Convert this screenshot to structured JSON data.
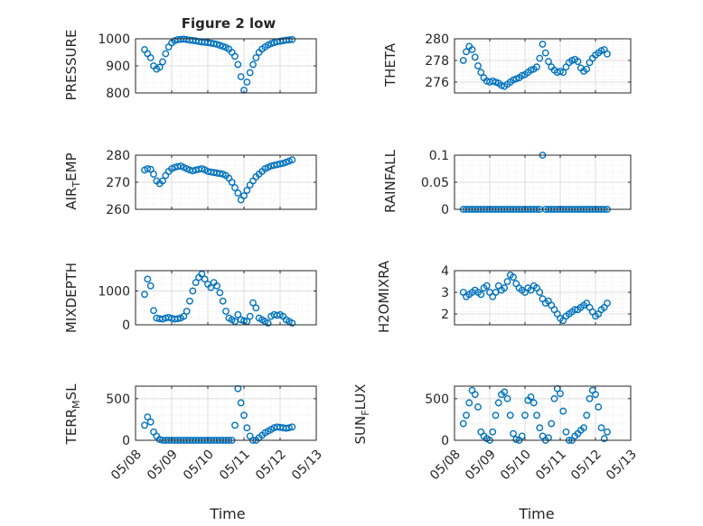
{
  "figure": {
    "title": "Figure 2 low"
  },
  "chart_data": [
    {
      "type": "scatter",
      "ylabel": "PRESSURE",
      "ylim": [
        800,
        1000
      ],
      "yticks": [
        800,
        900,
        1000
      ],
      "xlim": [
        "05/08",
        "05/13"
      ],
      "grid": "on",
      "minor_grid": "on",
      "marker": "circle",
      "color": "#0072BD",
      "x": [
        "05/08 06:00",
        "05/08 08:00",
        "05/08 10:00",
        "05/08 12:00",
        "05/08 14:00",
        "05/08 16:00",
        "05/08 18:00",
        "05/08 20:00",
        "05/08 22:00",
        "05/09 00:00",
        "05/09 02:00",
        "05/09 04:00",
        "05/09 06:00",
        "05/09 08:00",
        "05/09 10:00",
        "05/09 12:00",
        "05/09 14:00",
        "05/09 16:00",
        "05/09 18:00",
        "05/09 20:00",
        "05/09 22:00",
        "05/10 00:00",
        "05/10 02:00",
        "05/10 04:00",
        "05/10 06:00",
        "05/10 08:00",
        "05/10 10:00",
        "05/10 12:00",
        "05/10 14:00",
        "05/10 16:00",
        "05/10 18:00",
        "05/10 20:00",
        "05/10 22:00",
        "05/11 00:00",
        "05/11 02:00",
        "05/11 04:00",
        "05/11 06:00",
        "05/11 08:00",
        "05/11 10:00",
        "05/11 12:00",
        "05/11 14:00",
        "05/11 16:00",
        "05/11 18:00",
        "05/11 20:00",
        "05/11 22:00",
        "05/12 00:00",
        "05/12 02:00",
        "05/12 04:00",
        "05/12 06:00",
        "05/12 08:00"
      ],
      "y": [
        960,
        945,
        930,
        900,
        888,
        895,
        915,
        945,
        970,
        985,
        993,
        997,
        998,
        999,
        997,
        995,
        994,
        992,
        990,
        988,
        987,
        986,
        984,
        982,
        980,
        976,
        972,
        968,
        962,
        950,
        935,
        905,
        860,
        810,
        840,
        875,
        905,
        930,
        950,
        962,
        970,
        977,
        982,
        986,
        989,
        991,
        993,
        995,
        996,
        997
      ]
    },
    {
      "type": "scatter",
      "ylabel": "THETA",
      "ylim": [
        275,
        280
      ],
      "yticks": [
        276,
        278,
        280
      ],
      "xlim": [
        "05/08",
        "05/13"
      ],
      "grid": "on",
      "minor_grid": "on",
      "marker": "circle",
      "color": "#0072BD",
      "x": [
        "05/08 06:00",
        "05/08 08:00",
        "05/08 10:00",
        "05/08 12:00",
        "05/08 14:00",
        "05/08 16:00",
        "05/08 18:00",
        "05/08 20:00",
        "05/08 22:00",
        "05/09 00:00",
        "05/09 02:00",
        "05/09 04:00",
        "05/09 06:00",
        "05/09 08:00",
        "05/09 10:00",
        "05/09 12:00",
        "05/09 14:00",
        "05/09 16:00",
        "05/09 18:00",
        "05/09 20:00",
        "05/09 22:00",
        "05/10 00:00",
        "05/10 02:00",
        "05/10 04:00",
        "05/10 06:00",
        "05/10 08:00",
        "05/10 10:00",
        "05/10 12:00",
        "05/10 14:00",
        "05/10 16:00",
        "05/10 18:00",
        "05/10 20:00",
        "05/10 22:00",
        "05/11 00:00",
        "05/11 02:00",
        "05/11 04:00",
        "05/11 06:00",
        "05/11 08:00",
        "05/11 10:00",
        "05/11 12:00",
        "05/11 14:00",
        "05/11 16:00",
        "05/11 18:00",
        "05/11 20:00",
        "05/11 22:00",
        "05/12 00:00",
        "05/12 02:00",
        "05/12 04:00",
        "05/12 06:00",
        "05/12 08:00"
      ],
      "y": [
        278.0,
        278.8,
        279.3,
        279.0,
        278.3,
        277.5,
        276.9,
        276.4,
        276.1,
        276.0,
        276.1,
        276.0,
        275.9,
        275.7,
        275.6,
        275.8,
        276.0,
        276.2,
        276.3,
        276.4,
        276.6,
        276.7,
        276.9,
        277.1,
        277.2,
        277.4,
        278.2,
        279.5,
        278.7,
        277.9,
        277.4,
        277.1,
        276.9,
        277.0,
        276.9,
        277.4,
        277.8,
        278.0,
        278.1,
        277.9,
        277.3,
        277.0,
        277.2,
        277.8,
        278.2,
        278.5,
        278.7,
        278.9,
        279.0,
        278.6
      ]
    },
    {
      "type": "scatter",
      "ylabel": "AIR_TEMP",
      "ylim": [
        260,
        280
      ],
      "yticks": [
        260,
        270,
        280
      ],
      "xlim": [
        "05/08",
        "05/13"
      ],
      "grid": "on",
      "minor_grid": "on",
      "marker": "circle",
      "color": "#0072BD",
      "x": [
        "05/08 06:00",
        "05/08 08:00",
        "05/08 10:00",
        "05/08 12:00",
        "05/08 14:00",
        "05/08 16:00",
        "05/08 18:00",
        "05/08 20:00",
        "05/08 22:00",
        "05/09 00:00",
        "05/09 02:00",
        "05/09 04:00",
        "05/09 06:00",
        "05/09 08:00",
        "05/09 10:00",
        "05/09 12:00",
        "05/09 14:00",
        "05/09 16:00",
        "05/09 18:00",
        "05/09 20:00",
        "05/09 22:00",
        "05/10 00:00",
        "05/10 02:00",
        "05/10 04:00",
        "05/10 06:00",
        "05/10 08:00",
        "05/10 10:00",
        "05/10 12:00",
        "05/10 14:00",
        "05/10 16:00",
        "05/10 18:00",
        "05/10 20:00",
        "05/10 22:00",
        "05/11 00:00",
        "05/11 02:00",
        "05/11 04:00",
        "05/11 06:00",
        "05/11 08:00",
        "05/11 10:00",
        "05/11 12:00",
        "05/11 14:00",
        "05/11 16:00",
        "05/11 18:00",
        "05/11 20:00",
        "05/11 22:00",
        "05/12 00:00",
        "05/12 02:00",
        "05/12 04:00",
        "05/12 06:00",
        "05/12 08:00"
      ],
      "y": [
        274.5,
        275.0,
        274.8,
        273.0,
        270.5,
        269.5,
        270.5,
        272.5,
        274.0,
        275.0,
        275.5,
        275.8,
        276.0,
        275.5,
        275.0,
        274.5,
        274.2,
        274.5,
        274.8,
        275.0,
        274.6,
        274.0,
        273.8,
        273.6,
        273.4,
        273.2,
        273.0,
        272.5,
        271.5,
        270.0,
        268.0,
        266.0,
        263.5,
        265.0,
        267.0,
        269.0,
        270.5,
        272.0,
        273.0,
        274.0,
        275.0,
        275.5,
        276.0,
        276.3,
        276.5,
        276.8,
        277.0,
        277.4,
        277.8,
        278.3
      ]
    },
    {
      "type": "scatter",
      "ylabel": "RAINFALL",
      "ylim": [
        0,
        0.1
      ],
      "yticks": [
        0,
        0.05,
        0.1
      ],
      "xlim": [
        "05/08",
        "05/13"
      ],
      "grid": "on",
      "minor_grid": "on",
      "marker": "circle",
      "color": "#0072BD",
      "x": [
        "05/08 06:00",
        "05/08 08:00",
        "05/08 10:00",
        "05/08 12:00",
        "05/08 14:00",
        "05/08 16:00",
        "05/08 18:00",
        "05/08 20:00",
        "05/08 22:00",
        "05/09 00:00",
        "05/09 02:00",
        "05/09 04:00",
        "05/09 06:00",
        "05/09 08:00",
        "05/09 10:00",
        "05/09 12:00",
        "05/09 14:00",
        "05/09 16:00",
        "05/09 18:00",
        "05/09 20:00",
        "05/09 22:00",
        "05/10 00:00",
        "05/10 02:00",
        "05/10 04:00",
        "05/10 06:00",
        "05/10 08:00",
        "05/10 10:00",
        "05/10 12:00",
        "05/10 14:00",
        "05/10 16:00",
        "05/10 18:00",
        "05/10 20:00",
        "05/10 22:00",
        "05/11 00:00",
        "05/11 02:00",
        "05/11 04:00",
        "05/11 06:00",
        "05/11 08:00",
        "05/11 10:00",
        "05/11 12:00",
        "05/11 14:00",
        "05/11 16:00",
        "05/11 18:00",
        "05/11 20:00",
        "05/11 22:00",
        "05/12 00:00",
        "05/12 02:00",
        "05/12 04:00",
        "05/12 06:00",
        "05/12 08:00"
      ],
      "y": [
        0,
        0,
        0,
        0,
        0,
        0,
        0,
        0,
        0,
        0,
        0,
        0,
        0,
        0,
        0,
        0,
        0,
        0,
        0,
        0,
        0,
        0,
        0,
        0,
        0,
        0,
        0,
        0.1,
        0,
        0,
        0,
        0,
        0,
        0,
        0,
        0,
        0,
        0,
        0,
        0,
        0,
        0,
        0,
        0,
        0,
        0,
        0,
        0,
        0,
        0
      ]
    },
    {
      "type": "scatter",
      "ylabel": "MIXDEPTH",
      "ylim": [
        0,
        1600
      ],
      "yticks": [
        0,
        1000
      ],
      "xlim": [
        "05/08",
        "05/13"
      ],
      "grid": "on",
      "minor_grid": "on",
      "marker": "circle",
      "color": "#0072BD",
      "x": [
        "05/08 06:00",
        "05/08 08:00",
        "05/08 10:00",
        "05/08 12:00",
        "05/08 14:00",
        "05/08 16:00",
        "05/08 18:00",
        "05/08 20:00",
        "05/08 22:00",
        "05/09 00:00",
        "05/09 02:00",
        "05/09 04:00",
        "05/09 06:00",
        "05/09 08:00",
        "05/09 10:00",
        "05/09 12:00",
        "05/09 14:00",
        "05/09 16:00",
        "05/09 18:00",
        "05/09 20:00",
        "05/09 22:00",
        "05/10 00:00",
        "05/10 02:00",
        "05/10 04:00",
        "05/10 06:00",
        "05/10 08:00",
        "05/10 10:00",
        "05/10 12:00",
        "05/10 14:00",
        "05/10 16:00",
        "05/10 18:00",
        "05/10 20:00",
        "05/10 22:00",
        "05/11 00:00",
        "05/11 02:00",
        "05/11 04:00",
        "05/11 06:00",
        "05/11 08:00",
        "05/11 10:00",
        "05/11 12:00",
        "05/11 14:00",
        "05/11 16:00",
        "05/11 18:00",
        "05/11 20:00",
        "05/11 22:00",
        "05/12 00:00",
        "05/12 02:00",
        "05/12 04:00",
        "05/12 06:00",
        "05/12 08:00"
      ],
      "y": [
        900,
        1350,
        1150,
        420,
        200,
        180,
        170,
        200,
        220,
        190,
        170,
        180,
        200,
        250,
        400,
        700,
        1000,
        1250,
        1400,
        1500,
        1350,
        1200,
        1100,
        1250,
        1150,
        950,
        700,
        400,
        200,
        150,
        100,
        300,
        150,
        120,
        100,
        250,
        650,
        500,
        200,
        150,
        100,
        50,
        250,
        300,
        280,
        300,
        250,
        150,
        100,
        50
      ]
    },
    {
      "type": "scatter",
      "ylabel": "H2OMIXRA",
      "ylim": [
        1.5,
        4
      ],
      "yticks": [
        2,
        3,
        4
      ],
      "xlim": [
        "05/08",
        "05/13"
      ],
      "grid": "on",
      "minor_grid": "on",
      "marker": "circle",
      "color": "#0072BD",
      "x": [
        "05/08 06:00",
        "05/08 08:00",
        "05/08 10:00",
        "05/08 12:00",
        "05/08 14:00",
        "05/08 16:00",
        "05/08 18:00",
        "05/08 20:00",
        "05/08 22:00",
        "05/09 00:00",
        "05/09 02:00",
        "05/09 04:00",
        "05/09 06:00",
        "05/09 08:00",
        "05/09 10:00",
        "05/09 12:00",
        "05/09 14:00",
        "05/09 16:00",
        "05/09 18:00",
        "05/09 20:00",
        "05/09 22:00",
        "05/10 00:00",
        "05/10 02:00",
        "05/10 04:00",
        "05/10 06:00",
        "05/10 08:00",
        "05/10 10:00",
        "05/10 12:00",
        "05/10 14:00",
        "05/10 16:00",
        "05/10 18:00",
        "05/10 20:00",
        "05/10 22:00",
        "05/11 00:00",
        "05/11 02:00",
        "05/11 04:00",
        "05/11 06:00",
        "05/11 08:00",
        "05/11 10:00",
        "05/11 12:00",
        "05/11 14:00",
        "05/11 16:00",
        "05/11 18:00",
        "05/11 20:00",
        "05/11 22:00",
        "05/12 00:00",
        "05/12 02:00",
        "05/12 04:00",
        "05/12 06:00",
        "05/12 08:00"
      ],
      "y": [
        3.0,
        2.8,
        2.9,
        3.0,
        3.1,
        3.0,
        2.9,
        3.2,
        3.3,
        3.0,
        2.8,
        3.0,
        3.3,
        3.1,
        3.2,
        3.5,
        3.8,
        3.7,
        3.4,
        3.2,
        3.1,
        3.0,
        3.2,
        3.1,
        3.3,
        3.2,
        3.0,
        2.7,
        2.5,
        2.6,
        2.4,
        2.2,
        2.0,
        1.8,
        1.7,
        1.9,
        2.0,
        2.1,
        2.2,
        2.2,
        2.3,
        2.4,
        2.5,
        2.3,
        2.1,
        1.9,
        2.0,
        2.2,
        2.3,
        2.5
      ]
    },
    {
      "type": "scatter",
      "ylabel": "TERR_MSL",
      "ylim": [
        0,
        650
      ],
      "yticks": [
        0,
        500
      ],
      "xlim": [
        "05/08",
        "05/13"
      ],
      "grid": "on",
      "minor_grid": "on",
      "marker": "circle",
      "color": "#0072BD",
      "x": [
        "05/08 06:00",
        "05/08 08:00",
        "05/08 10:00",
        "05/08 12:00",
        "05/08 14:00",
        "05/08 16:00",
        "05/08 18:00",
        "05/08 20:00",
        "05/08 22:00",
        "05/09 00:00",
        "05/09 02:00",
        "05/09 04:00",
        "05/09 06:00",
        "05/09 08:00",
        "05/09 10:00",
        "05/09 12:00",
        "05/09 14:00",
        "05/09 16:00",
        "05/09 18:00",
        "05/09 20:00",
        "05/09 22:00",
        "05/10 00:00",
        "05/10 02:00",
        "05/10 04:00",
        "05/10 06:00",
        "05/10 08:00",
        "05/10 10:00",
        "05/10 12:00",
        "05/10 14:00",
        "05/10 16:00",
        "05/10 18:00",
        "05/10 20:00",
        "05/10 22:00",
        "05/11 00:00",
        "05/11 02:00",
        "05/11 04:00",
        "05/11 06:00",
        "05/11 08:00",
        "05/11 10:00",
        "05/11 12:00",
        "05/11 14:00",
        "05/11 16:00",
        "05/11 18:00",
        "05/11 20:00",
        "05/11 22:00",
        "05/12 00:00",
        "05/12 02:00",
        "05/12 04:00",
        "05/12 06:00",
        "05/12 08:00"
      ],
      "y": [
        180,
        280,
        220,
        100,
        50,
        10,
        0,
        0,
        0,
        0,
        0,
        0,
        0,
        0,
        0,
        0,
        0,
        0,
        0,
        0,
        0,
        0,
        0,
        0,
        0,
        0,
        0,
        0,
        0,
        0,
        180,
        620,
        450,
        300,
        150,
        50,
        0,
        0,
        30,
        60,
        90,
        110,
        130,
        150,
        160,
        155,
        150,
        145,
        150,
        160
      ]
    },
    {
      "type": "scatter",
      "ylabel": "SUN_FLUX",
      "ylim": [
        0,
        650
      ],
      "yticks": [
        0,
        500
      ],
      "xlim": [
        "05/08",
        "05/13"
      ],
      "grid": "on",
      "minor_grid": "on",
      "marker": "circle",
      "color": "#0072BD",
      "x": [
        "05/08 06:00",
        "05/08 08:00",
        "05/08 10:00",
        "05/08 12:00",
        "05/08 14:00",
        "05/08 16:00",
        "05/08 18:00",
        "05/08 20:00",
        "05/08 22:00",
        "05/09 00:00",
        "05/09 02:00",
        "05/09 04:00",
        "05/09 06:00",
        "05/09 08:00",
        "05/09 10:00",
        "05/09 12:00",
        "05/09 14:00",
        "05/09 16:00",
        "05/09 18:00",
        "05/09 20:00",
        "05/09 22:00",
        "05/10 00:00",
        "05/10 02:00",
        "05/10 04:00",
        "05/10 06:00",
        "05/10 08:00",
        "05/10 10:00",
        "05/10 12:00",
        "05/10 14:00",
        "05/10 16:00",
        "05/10 18:00",
        "05/10 20:00",
        "05/10 22:00",
        "05/11 00:00",
        "05/11 02:00",
        "05/11 04:00",
        "05/11 06:00",
        "05/11 08:00",
        "05/11 10:00",
        "05/11 12:00",
        "05/11 14:00",
        "05/11 16:00",
        "05/11 18:00",
        "05/11 20:00",
        "05/11 22:00",
        "05/12 00:00",
        "05/12 02:00",
        "05/12 04:00",
        "05/12 06:00",
        "05/12 08:00"
      ],
      "y": [
        200,
        300,
        450,
        600,
        550,
        400,
        100,
        50,
        20,
        0,
        100,
        300,
        450,
        550,
        580,
        500,
        300,
        80,
        10,
        0,
        50,
        300,
        480,
        520,
        450,
        300,
        150,
        50,
        0,
        30,
        200,
        500,
        620,
        560,
        350,
        100,
        0,
        0,
        50,
        80,
        120,
        150,
        300,
        500,
        600,
        550,
        400,
        150,
        20,
        100
      ]
    }
  ],
  "x_axis": {
    "tick_labels": [
      "05/08",
      "05/09",
      "05/10",
      "05/11",
      "05/12",
      "05/13"
    ],
    "label": "Time"
  },
  "y_labels": {
    "pressure": "PRESSURE",
    "theta": "THETA",
    "air_main": "AIR",
    "air_sub": "T",
    "air_tail": "EMP",
    "rainfall": "RAINFALL",
    "mixdepth": "MIXDEPTH",
    "h2o": "H2OMIXRA",
    "terr_main": "TERR",
    "terr_sub": "M",
    "terr_tail": "SL",
    "sun_main": "SUN",
    "sun_sub": "F",
    "sun_tail": "LUX"
  },
  "y_tick_labels": [
    [
      "800",
      "900",
      "1000"
    ],
    [
      "276",
      "278",
      "280"
    ],
    [
      "260",
      "270",
      "280"
    ],
    [
      "0",
      "0.05",
      "0.1"
    ],
    [
      "0",
      "1000"
    ],
    [
      "2",
      "3",
      "4"
    ],
    [
      "0",
      "500"
    ],
    [
      "0",
      "500"
    ]
  ],
  "colors": {
    "marker": "#0072BD",
    "axes": "#262626",
    "grid": "#dcdcdc",
    "minor_grid": "#e6e6e6"
  }
}
